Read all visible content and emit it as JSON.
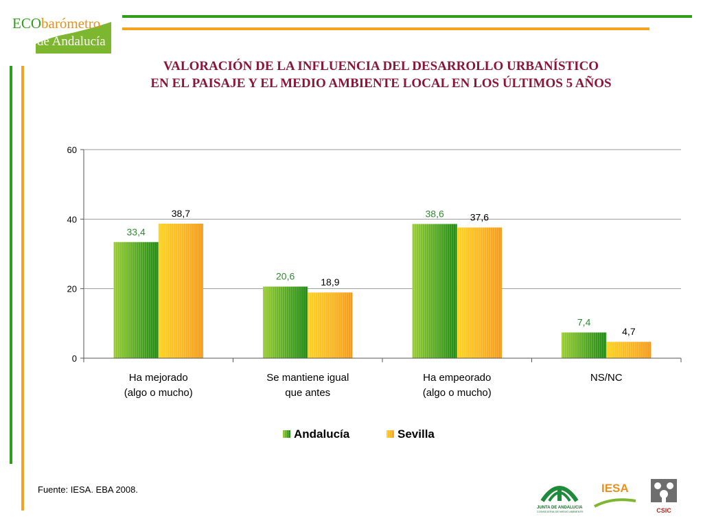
{
  "brand": {
    "logo_line1_a": "ECO",
    "logo_line1_b": "barómetro",
    "logo_line2": "de Andalucía"
  },
  "title": {
    "line1": "VALORACIÓN DE LA INFLUENCIA DEL DESARROLLO URBANÍSTICO",
    "line2": "EN EL PAISAJE Y EL MEDIO AMBIENTE  LOCAL  EN  LOS ÚLTIMOS  5  AÑOS"
  },
  "colors": {
    "green": "#2E9E1A",
    "orange": "#F5A21E",
    "title": "#8B1538",
    "label_green": "#2E8B2E"
  },
  "chart_data": {
    "type": "bar",
    "categories": [
      [
        "Ha mejorado",
        "(algo o mucho)"
      ],
      [
        "Se mantiene igual",
        "que antes"
      ],
      [
        "Ha empeorado",
        "(algo o mucho)"
      ],
      [
        "NS/NC"
      ]
    ],
    "series": [
      {
        "name": "Andalucía",
        "values": [
          33.4,
          20.6,
          38.6,
          7.4
        ],
        "labels": [
          "33,4",
          "20,6",
          "38,6",
          "7,4"
        ]
      },
      {
        "name": "Sevilla",
        "values": [
          38.7,
          18.9,
          37.6,
          4.7
        ],
        "labels": [
          "38,7",
          "18,9",
          "37,6",
          "4,7"
        ]
      }
    ],
    "ylim": [
      0,
      60
    ],
    "yticks": [
      0,
      20,
      40,
      60
    ],
    "grid": true,
    "legend": "bottom"
  },
  "footer": {
    "source": "Fuente: IESA. EBA 2008."
  },
  "logos": {
    "junta_line1": "JUNTA DE ANDALUCIA",
    "junta_line2": "CONSEJERIA DE MEDIO AMBIENTE",
    "iesa": "IESA",
    "csic": "CSIC"
  }
}
